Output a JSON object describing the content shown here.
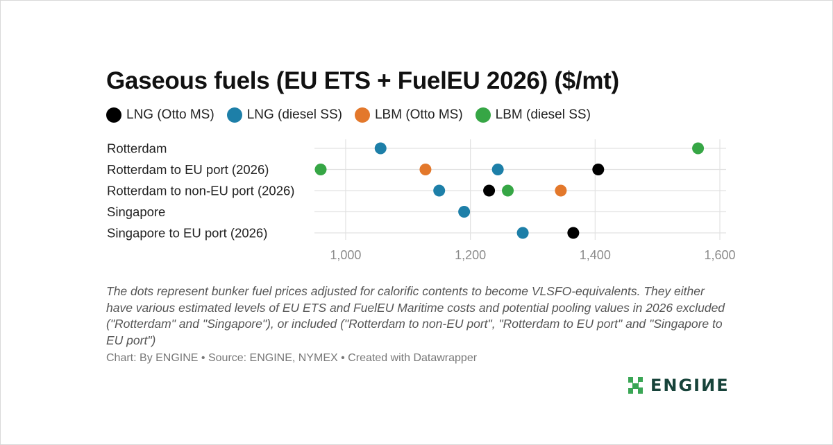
{
  "title": "Gaseous fuels (EU ETS + FuelEU 2026) ($/mt)",
  "legend": [
    {
      "label": "LNG (Otto MS)",
      "color": "#000000"
    },
    {
      "label": "LNG (diesel SS)",
      "color": "#1d7fa8"
    },
    {
      "label": "LBM (Otto MS)",
      "color": "#e3782b"
    },
    {
      "label": "LBM (diesel SS)",
      "color": "#36a645"
    }
  ],
  "notes": "The dots represent bunker fuel prices adjusted for calorific contents to become VLSFO-equivalents. They either have various estimated levels of EU ETS and FuelEU Maritime costs and potential pooling values in 2026 excluded (\"Rotterdam\" and \"Singapore\"), or included (\"Rotterdam to non-EU port\", \"Rotterdam to EU port\" and \"Singapore to EU port\")",
  "source": "Chart: By ENGINE • Source: ENGINE, NYMEX • Created with Datawrapper",
  "logo": {
    "text": "ENGIИE",
    "color": "#17433a",
    "accent": "#3aa655"
  },
  "chart_data": {
    "type": "scatter",
    "title": "Gaseous fuels (EU ETS + FuelEU 2026) ($/mt)",
    "categories": [
      "Rotterdam",
      "Rotterdam to EU port (2026)",
      "Rotterdam to non-EU port (2026)",
      "Singapore",
      "Singapore to EU port (2026)"
    ],
    "series": [
      {
        "name": "LNG (Otto MS)",
        "color": "#000000",
        "values": [
          null,
          1405,
          1230,
          null,
          1365
        ]
      },
      {
        "name": "LNG (diesel SS)",
        "color": "#1d7fa8",
        "values": [
          1056,
          1244,
          1150,
          1190,
          1284
        ]
      },
      {
        "name": "LBM (Otto MS)",
        "color": "#e3782b",
        "values": [
          null,
          1128,
          1345,
          null,
          null
        ]
      },
      {
        "name": "LBM (diesel SS)",
        "color": "#36a645",
        "values": [
          1565,
          960,
          1260,
          null,
          null
        ]
      }
    ],
    "x_ticks": [
      1000,
      1200,
      1400,
      1600
    ],
    "x_tick_labels": [
      "1,000",
      "1,200",
      "1,400",
      "1,600"
    ],
    "xlim": [
      950,
      1610
    ],
    "grid": true,
    "legend_position": "top-left",
    "xlabel": "",
    "ylabel": ""
  }
}
